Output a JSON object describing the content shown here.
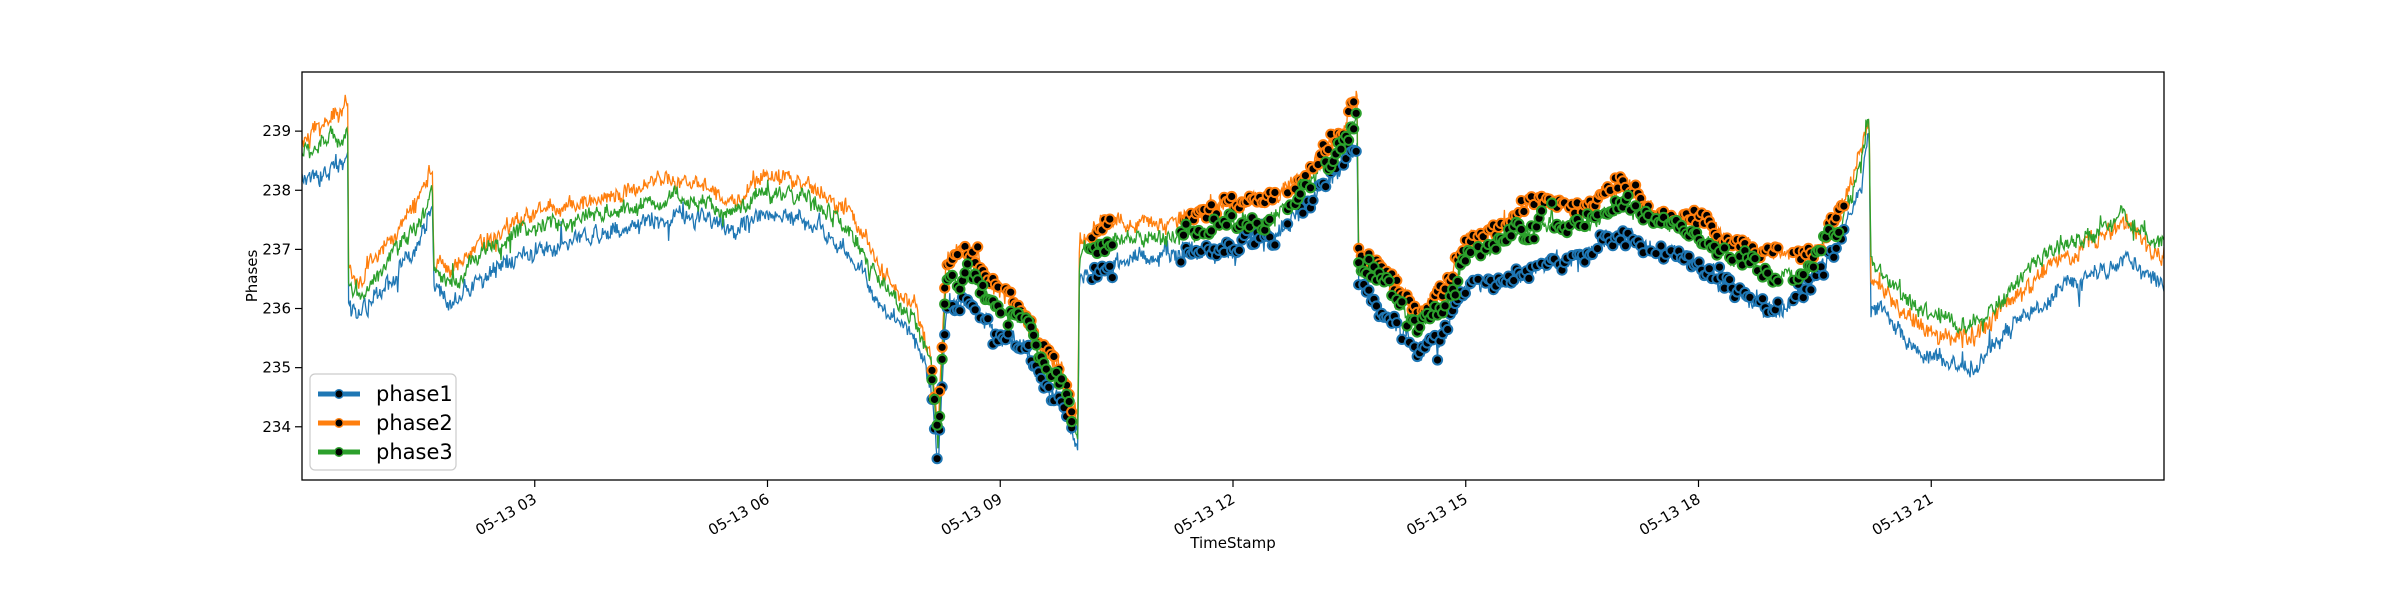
{
  "chart_data": {
    "type": "line",
    "title": "",
    "xlabel": "TimeStamp",
    "ylabel": "Phases",
    "x_domain": [
      "05-13 00:00",
      "05-13 23:59"
    ],
    "x_ticks": [
      "05-13 03",
      "05-13 06",
      "05-13 09",
      "05-13 12",
      "05-13 15",
      "05-13 18",
      "05-13 21"
    ],
    "x_tick_hours": [
      3,
      6,
      9,
      12,
      15,
      18,
      21
    ],
    "ylim": [
      233.1,
      240.0
    ],
    "y_ticks": [
      234,
      235,
      236,
      237,
      238,
      239
    ],
    "grid": false,
    "legend_position": "lower-left",
    "anomaly_marker": "black-filled-circle",
    "series": [
      {
        "name": "phase1",
        "color": "#1f77b4",
        "points": [
          [
            0.0,
            238.2
          ],
          [
            0.6,
            238.5
          ],
          [
            0.58,
            238.45
          ],
          [
            0.6,
            236.1
          ],
          [
            0.7,
            235.8
          ],
          [
            1.0,
            236.3
          ],
          [
            1.5,
            237.0
          ],
          [
            1.68,
            237.8
          ],
          [
            1.7,
            236.4
          ],
          [
            1.9,
            236.0
          ],
          [
            2.3,
            236.5
          ],
          [
            2.8,
            236.9
          ],
          [
            3.5,
            237.2
          ],
          [
            4.2,
            237.4
          ],
          [
            4.8,
            237.6
          ],
          [
            5.2,
            237.5
          ],
          [
            5.6,
            237.3
          ],
          [
            6.0,
            237.7
          ],
          [
            6.5,
            237.5
          ],
          [
            7.0,
            237.0
          ],
          [
            7.5,
            236.0
          ],
          [
            7.9,
            235.5
          ],
          [
            8.1,
            234.8
          ],
          [
            8.2,
            233.4
          ],
          [
            8.3,
            236.0
          ],
          [
            8.6,
            236.1
          ],
          [
            8.9,
            235.6
          ],
          [
            9.3,
            235.4
          ],
          [
            9.6,
            234.6
          ],
          [
            9.8,
            234.4
          ],
          [
            10.0,
            233.6
          ],
          [
            10.02,
            236.5
          ],
          [
            10.5,
            236.8
          ],
          [
            11.0,
            236.9
          ],
          [
            11.5,
            236.9
          ],
          [
            12.0,
            237.0
          ],
          [
            12.5,
            237.2
          ],
          [
            13.0,
            237.8
          ],
          [
            13.4,
            238.4
          ],
          [
            13.6,
            238.8
          ],
          [
            13.62,
            236.5
          ],
          [
            14.0,
            235.8
          ],
          [
            14.4,
            235.3
          ],
          [
            14.7,
            235.6
          ],
          [
            15.0,
            236.4
          ],
          [
            15.5,
            236.5
          ],
          [
            16.0,
            236.7
          ],
          [
            16.5,
            236.9
          ],
          [
            17.0,
            237.3
          ],
          [
            17.5,
            237.0
          ],
          [
            18.0,
            236.8
          ],
          [
            18.5,
            236.3
          ],
          [
            19.0,
            236.0
          ],
          [
            19.4,
            236.3
          ],
          [
            19.8,
            237.1
          ],
          [
            20.1,
            238.0
          ],
          [
            20.2,
            239.1
          ],
          [
            20.22,
            236.0
          ],
          [
            20.6,
            235.6
          ],
          [
            21.0,
            235.2
          ],
          [
            21.5,
            235.0
          ],
          [
            22.0,
            235.6
          ],
          [
            22.5,
            236.2
          ],
          [
            23.0,
            236.5
          ],
          [
            23.5,
            236.8
          ],
          [
            23.9,
            236.4
          ]
        ]
      },
      {
        "name": "phase2",
        "color": "#ff7f0e",
        "points": [
          [
            0.0,
            238.8
          ],
          [
            0.6,
            239.5
          ],
          [
            0.58,
            239.4
          ],
          [
            0.6,
            236.7
          ],
          [
            0.7,
            236.4
          ],
          [
            1.0,
            236.9
          ],
          [
            1.5,
            237.8
          ],
          [
            1.68,
            238.5
          ],
          [
            1.7,
            236.9
          ],
          [
            1.9,
            236.6
          ],
          [
            2.3,
            237.1
          ],
          [
            2.8,
            237.5
          ],
          [
            3.5,
            237.8
          ],
          [
            4.2,
            238.0
          ],
          [
            4.8,
            238.2
          ],
          [
            5.2,
            238.0
          ],
          [
            5.6,
            237.8
          ],
          [
            6.0,
            238.3
          ],
          [
            6.5,
            238.1
          ],
          [
            7.0,
            237.7
          ],
          [
            7.5,
            236.6
          ],
          [
            7.9,
            236.0
          ],
          [
            8.1,
            235.3
          ],
          [
            8.2,
            233.9
          ],
          [
            8.3,
            236.8
          ],
          [
            8.6,
            237.0
          ],
          [
            8.9,
            236.4
          ],
          [
            9.3,
            236.0
          ],
          [
            9.6,
            235.2
          ],
          [
            9.8,
            234.9
          ],
          [
            10.0,
            234.0
          ],
          [
            10.02,
            237.2
          ],
          [
            10.5,
            237.5
          ],
          [
            11.0,
            237.4
          ],
          [
            11.5,
            237.6
          ],
          [
            12.0,
            237.8
          ],
          [
            12.5,
            237.8
          ],
          [
            13.0,
            238.4
          ],
          [
            13.4,
            239.0
          ],
          [
            13.6,
            239.6
          ],
          [
            13.62,
            237.0
          ],
          [
            14.0,
            236.6
          ],
          [
            14.4,
            235.9
          ],
          [
            14.7,
            236.2
          ],
          [
            15.0,
            237.1
          ],
          [
            15.5,
            237.5
          ],
          [
            16.0,
            237.8
          ],
          [
            16.5,
            237.7
          ],
          [
            17.0,
            238.1
          ],
          [
            17.5,
            237.6
          ],
          [
            18.0,
            237.5
          ],
          [
            18.5,
            237.1
          ],
          [
            19.0,
            236.9
          ],
          [
            19.4,
            236.9
          ],
          [
            19.8,
            237.6
          ],
          [
            20.1,
            238.6
          ],
          [
            20.2,
            239.3
          ],
          [
            20.22,
            236.6
          ],
          [
            20.6,
            236.0
          ],
          [
            21.0,
            235.6
          ],
          [
            21.5,
            235.5
          ],
          [
            22.0,
            236.1
          ],
          [
            22.5,
            236.7
          ],
          [
            23.0,
            237.1
          ],
          [
            23.5,
            237.4
          ],
          [
            23.9,
            237.0
          ]
        ]
      },
      {
        "name": "phase3",
        "color": "#2ca02c",
        "points": [
          [
            0.0,
            238.6
          ],
          [
            0.6,
            239.0
          ],
          [
            0.58,
            238.95
          ],
          [
            0.6,
            236.4
          ],
          [
            0.7,
            236.2
          ],
          [
            1.0,
            236.6
          ],
          [
            1.5,
            237.4
          ],
          [
            1.68,
            238.1
          ],
          [
            1.7,
            236.7
          ],
          [
            1.9,
            236.4
          ],
          [
            2.3,
            236.9
          ],
          [
            2.8,
            237.3
          ],
          [
            3.5,
            237.5
          ],
          [
            4.2,
            237.7
          ],
          [
            4.8,
            237.9
          ],
          [
            5.2,
            237.8
          ],
          [
            5.6,
            237.6
          ],
          [
            6.0,
            238.0
          ],
          [
            6.5,
            237.9
          ],
          [
            7.0,
            237.4
          ],
          [
            7.5,
            236.3
          ],
          [
            7.9,
            235.8
          ],
          [
            8.1,
            235.1
          ],
          [
            8.2,
            233.7
          ],
          [
            8.3,
            236.5
          ],
          [
            8.6,
            236.7
          ],
          [
            8.9,
            236.1
          ],
          [
            9.3,
            235.8
          ],
          [
            9.6,
            235.0
          ],
          [
            9.8,
            234.7
          ],
          [
            10.0,
            233.8
          ],
          [
            10.02,
            236.9
          ],
          [
            10.5,
            237.2
          ],
          [
            11.0,
            237.2
          ],
          [
            11.5,
            237.3
          ],
          [
            12.0,
            237.4
          ],
          [
            12.5,
            237.5
          ],
          [
            13.0,
            238.1
          ],
          [
            13.4,
            238.7
          ],
          [
            13.6,
            239.3
          ],
          [
            13.62,
            236.8
          ],
          [
            14.0,
            236.3
          ],
          [
            14.4,
            235.7
          ],
          [
            14.7,
            236.0
          ],
          [
            15.0,
            236.9
          ],
          [
            15.5,
            237.2
          ],
          [
            16.0,
            237.4
          ],
          [
            16.5,
            237.4
          ],
          [
            17.0,
            237.8
          ],
          [
            17.5,
            237.4
          ],
          [
            18.0,
            237.2
          ],
          [
            18.5,
            236.8
          ],
          [
            19.0,
            236.5
          ],
          [
            19.4,
            236.7
          ],
          [
            19.8,
            237.4
          ],
          [
            20.1,
            238.4
          ],
          [
            20.2,
            239.2
          ],
          [
            20.22,
            236.8
          ],
          [
            20.6,
            236.2
          ],
          [
            21.0,
            235.9
          ],
          [
            21.5,
            235.7
          ],
          [
            22.0,
            236.3
          ],
          [
            22.5,
            236.9
          ],
          [
            23.0,
            237.2
          ],
          [
            23.5,
            237.6
          ],
          [
            23.9,
            237.1
          ]
        ]
      }
    ],
    "anomaly_ranges_hours": [
      [
        8.1,
        9.95
      ],
      [
        10.15,
        10.45
      ],
      [
        11.3,
        12.55
      ],
      [
        12.7,
        13.75
      ],
      [
        13.75,
        19.05
      ],
      [
        19.2,
        19.9
      ]
    ]
  }
}
